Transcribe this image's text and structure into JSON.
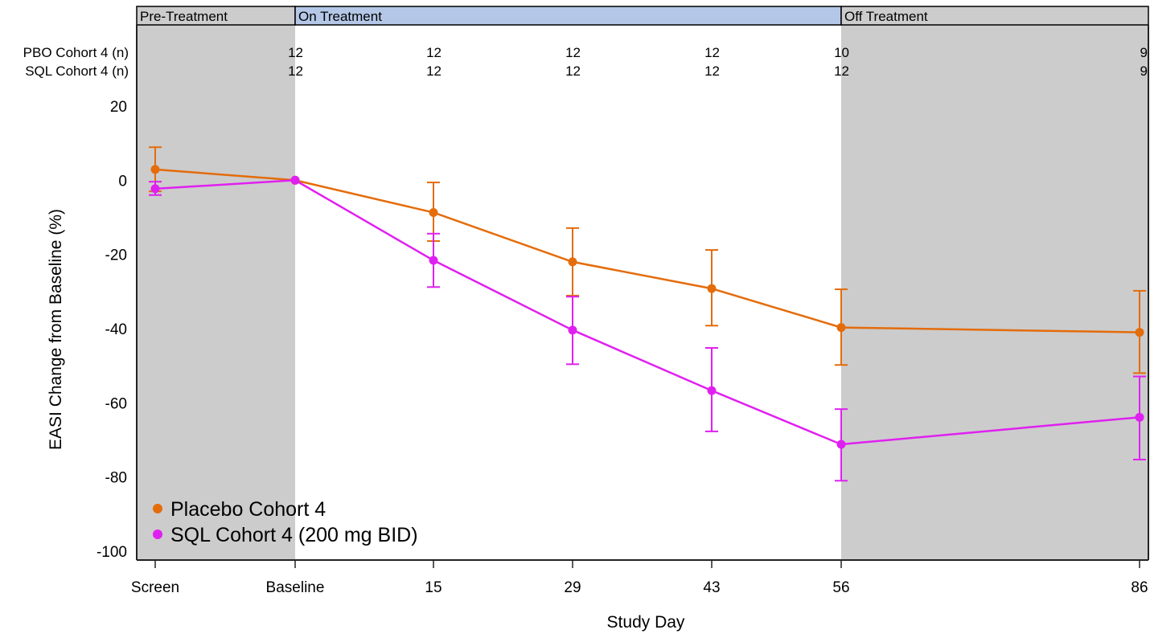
{
  "chart_data": {
    "type": "line",
    "xlabel": "Study Day",
    "ylabel": "EASI Change from Baseline (%)",
    "categories": [
      "Screen",
      "Baseline",
      "15",
      "29",
      "43",
      "56",
      "86"
    ],
    "ylim": [
      -100,
      20
    ],
    "yticks": [
      "20",
      "0",
      "-20",
      "-40",
      "-60",
      "-80",
      "-100"
    ],
    "grid": false,
    "legend_position": "bottom-left",
    "phases": [
      {
        "label": "Pre-Treatment",
        "from": "Screen",
        "to": "Baseline",
        "band_color": "#cccccc",
        "header_color": "#cccccc"
      },
      {
        "label": "On Treatment",
        "from": "Baseline",
        "to": "56",
        "band_color": "#ffffff",
        "header_color": "#b4c7e7"
      },
      {
        "label": "Off Treatment",
        "from": "56",
        "to": "86",
        "band_color": "#cccccc",
        "header_color": "#cccccc"
      }
    ],
    "n_table": [
      {
        "label": "PBO Cohort 4 (n)",
        "values": [
          "",
          "12",
          "12",
          "12",
          "12",
          "10",
          "9"
        ]
      },
      {
        "label": "SQL Cohort 4 (n)",
        "values": [
          "",
          "12",
          "12",
          "12",
          "12",
          "12",
          "9"
        ]
      }
    ],
    "series": [
      {
        "name": "Placebo Cohort 4",
        "color": "#e46c0a",
        "values": [
          2.9,
          0,
          -8.7,
          -22,
          -29.2,
          -39.7,
          -41
        ],
        "error_low": [
          -3,
          0,
          -16.4,
          -31.1,
          -39.2,
          -49.8,
          -52
        ],
        "error_high": [
          8.9,
          0,
          -0.6,
          -12.9,
          -18.8,
          -29.4,
          -29.8
        ]
      },
      {
        "name": "SQL Cohort 4 (200 mg BID)",
        "color": "#e020f0",
        "values": [
          -2.3,
          0,
          -21.6,
          -40.4,
          -56.7,
          -71.2,
          -63.9
        ],
        "error_low": [
          -4,
          0,
          -28.8,
          -49.6,
          -67.7,
          -81,
          -75.3
        ],
        "error_high": [
          -0.4,
          0,
          -14.4,
          -31.4,
          -45.2,
          -61.7,
          -52.9
        ]
      }
    ]
  }
}
